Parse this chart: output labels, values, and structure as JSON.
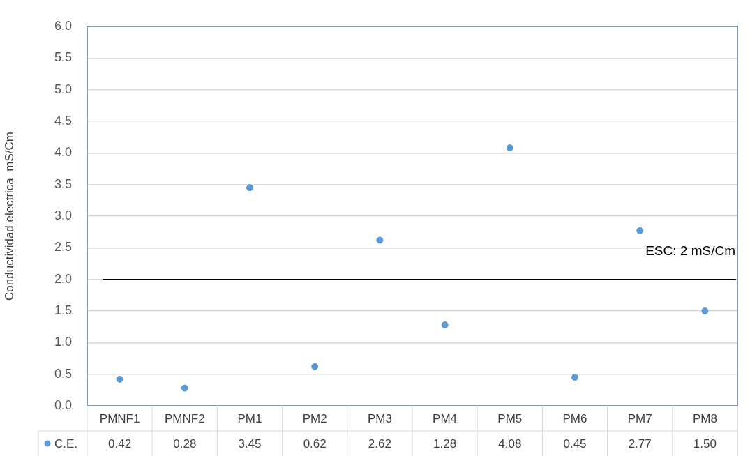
{
  "chart_data": {
    "type": "scatter",
    "ylabel": "Conductividad electrica  mS/Cm",
    "categories": [
      "PMNF1",
      "PMNF2",
      "PM1",
      "PM2",
      "PM3",
      "PM4",
      "PM5",
      "PM6",
      "PM7",
      "PM8"
    ],
    "series": [
      {
        "name": "C.E.",
        "color": "#5b9bd5",
        "values": [
          0.42,
          0.28,
          3.45,
          0.62,
          2.62,
          1.28,
          4.08,
          0.45,
          2.77,
          1.5
        ],
        "value_labels": [
          "0.42",
          "0.28",
          "3.45",
          "0.62",
          "2.62",
          "1.28",
          "4.08",
          "0.45",
          "2.77",
          "1.50"
        ]
      }
    ],
    "ylim": [
      0,
      6
    ],
    "yticks": [
      {
        "value": 0,
        "label": "0.0"
      },
      {
        "value": 0.5,
        "label": "0.5"
      },
      {
        "value": 1,
        "label": "1.0"
      },
      {
        "value": 1.5,
        "label": "1.5"
      },
      {
        "value": 2,
        "label": "2.0"
      },
      {
        "value": 2.5,
        "label": "2.5"
      },
      {
        "value": 3,
        "label": "3.0"
      },
      {
        "value": 3.5,
        "label": "3.5"
      },
      {
        "value": 4,
        "label": "4.0"
      },
      {
        "value": 4.5,
        "label": "4.5"
      },
      {
        "value": 5,
        "label": "5.0"
      },
      {
        "value": 5.5,
        "label": "5.5"
      },
      {
        "value": 6,
        "label": "6.0"
      }
    ],
    "ref_lines": [
      {
        "axis": "y",
        "value": 2,
        "label": "ESC: 2 mS/Cm",
        "color": "#000000"
      }
    ],
    "grid": "y",
    "legend": "bottom left",
    "marker": "circle"
  }
}
